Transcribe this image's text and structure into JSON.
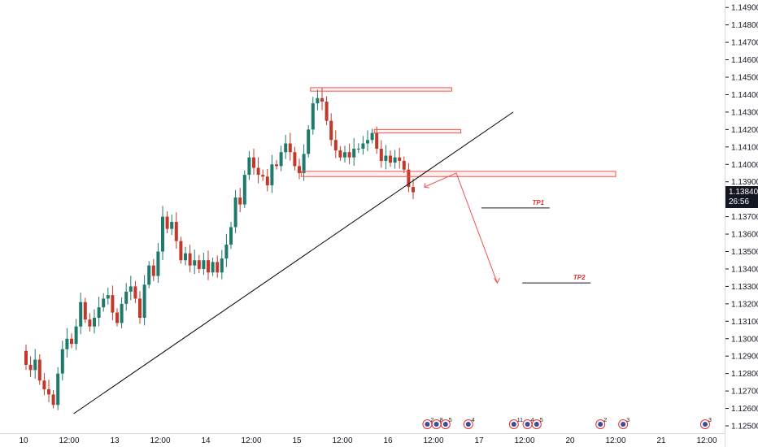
{
  "chart_data": {
    "type": "candlestick",
    "instrument_price_axis": "right",
    "y_ticks": [
      "1.14900",
      "1.14800",
      "1.14700",
      "1.14600",
      "1.14500",
      "1.14400",
      "1.14300",
      "1.14200",
      "1.14100",
      "1.14000",
      "1.13900",
      "1.13800",
      "1.13700",
      "1.13600",
      "1.13500",
      "1.13400",
      "1.13300",
      "1.13200",
      "1.13100",
      "1.13000",
      "1.12900",
      "1.12800",
      "1.12700",
      "1.12600",
      "1.12500"
    ],
    "ylim": [
      1.1245,
      1.1496
    ],
    "x_labels": [
      {
        "label": "10",
        "t": 0
      },
      {
        "label": "12:00",
        "t": 10
      },
      {
        "label": "13",
        "t": 20
      },
      {
        "label": "12:00",
        "t": 30
      },
      {
        "label": "14",
        "t": 40
      },
      {
        "label": "12:00",
        "t": 50
      },
      {
        "label": "15",
        "t": 60
      },
      {
        "label": "12:00",
        "t": 70
      },
      {
        "label": "16",
        "t": 80
      },
      {
        "label": "12:00",
        "t": 90
      },
      {
        "label": "17",
        "t": 100
      },
      {
        "label": "12:00",
        "t": 110
      },
      {
        "label": "20",
        "t": 120
      },
      {
        "label": "12:00",
        "t": 130
      },
      {
        "label": "21",
        "t": 140
      },
      {
        "label": "12:00",
        "t": 150
      }
    ],
    "last_price": "1.13840",
    "countdown": "26:56",
    "colors": {
      "up": "#26a69a",
      "down": "#ef5350",
      "up_body": "#1f7a6c",
      "down_body": "#c0392b",
      "zone": "#ef5350",
      "trendline": "#000000",
      "arrow": "#ef5350"
    },
    "close_path": [
      1.1293,
      1.1285,
      1.1282,
      1.1288,
      1.1276,
      1.1271,
      1.1268,
      1.1262,
      1.128,
      1.1294,
      1.13,
      1.1297,
      1.1307,
      1.1321,
      1.1311,
      1.1307,
      1.1312,
      1.1318,
      1.1323,
      1.1325,
      1.1315,
      1.1309,
      1.132,
      1.1327,
      1.133,
      1.1323,
      1.1312,
      1.1331,
      1.1342,
      1.1336,
      1.135,
      1.137,
      1.1363,
      1.1367,
      1.1356,
      1.1345,
      1.1349,
      1.1342,
      1.1345,
      1.134,
      1.1345,
      1.1338,
      1.1344,
      1.1338,
      1.1346,
      1.1354,
      1.1364,
      1.1381,
      1.1377,
      1.1394,
      1.1404,
      1.1398,
      1.1394,
      1.1393,
      1.1388,
      1.14,
      1.1399,
      1.1407,
      1.1412,
      1.1407,
      1.1399,
      1.1395,
      1.1406,
      1.142,
      1.1435,
      1.1438,
      1.1436,
      1.1425,
      1.1414,
      1.1408,
      1.1404,
      1.1407,
      1.1404,
      1.1409,
      1.1409,
      1.1412,
      1.1414,
      1.1418,
      1.1409,
      1.1402,
      1.1405,
      1.1401,
      1.1404,
      1.1402,
      1.1397,
      1.1387,
      1.1384
    ],
    "zones": [
      {
        "from": 1.1442,
        "to": 1.1444,
        "t_start": 63,
        "t_end": 94
      },
      {
        "from": 1.1418,
        "to": 1.142,
        "t_start": 77,
        "t_end": 96
      },
      {
        "from": 1.1393,
        "to": 1.1396,
        "t_start": 61,
        "t_end": 130
      }
    ],
    "trendline": [
      {
        "t": 11,
        "price": 1.1257
      },
      {
        "t": 107.5,
        "price": 1.143
      }
    ],
    "projection": [
      {
        "t": 88,
        "price": 1.1387
      },
      {
        "t": 95,
        "price": 1.1395
      },
      {
        "t": 104,
        "price": 1.1332
      }
    ],
    "targets": [
      {
        "label": "TP1",
        "price": 1.1375,
        "t_start": 100.5,
        "t_end": 115.5
      },
      {
        "label": "TP2",
        "price": 1.1332,
        "t_start": 109.5,
        "t_end": 124.5
      }
    ],
    "event_badges": [
      {
        "t": 89,
        "count": "2"
      },
      {
        "t": 91,
        "count": "8"
      },
      {
        "t": 93,
        "count": "5"
      },
      {
        "t": 98,
        "count": "4"
      },
      {
        "t": 108,
        "count": "11"
      },
      {
        "t": 111,
        "count": "4"
      },
      {
        "t": 113,
        "count": "5"
      },
      {
        "t": 127,
        "count": "2"
      },
      {
        "t": 132,
        "count": "3"
      },
      {
        "t": 150,
        "count": "3"
      }
    ]
  }
}
